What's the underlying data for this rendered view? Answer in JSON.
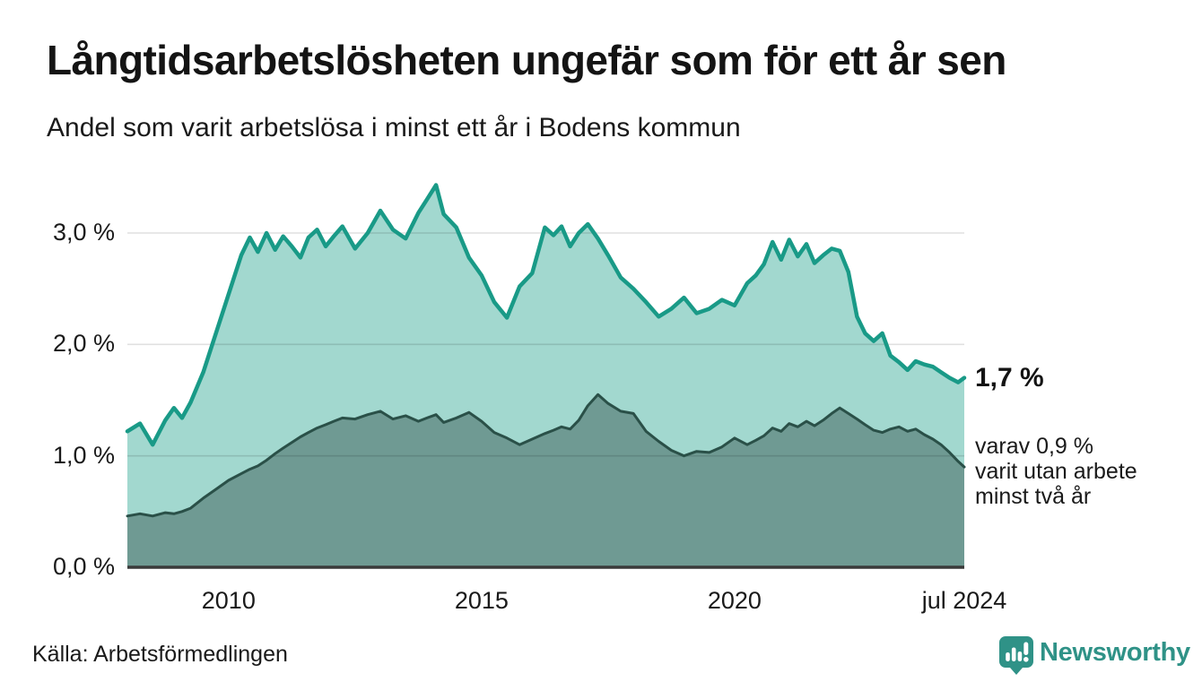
{
  "header": {
    "title": "Långtidsarbetslösheten ungefär som för ett år sen",
    "subtitle": "Andel som varit arbetslösa i minst ett år i Bodens kommun"
  },
  "chart_data": {
    "type": "area",
    "title": "Långtidsarbetslösheten ungefär som för ett år sen",
    "subtitle": "Andel som varit arbetslösa i minst ett år i Bodens kommun",
    "xlabel": "",
    "ylabel": "",
    "xlim": [
      2008.0,
      2024.54
    ],
    "ylim": [
      0,
      3.45
    ],
    "grid": true,
    "legend_position": "annotated-at-line-end",
    "x": [
      2008.0,
      2008.25,
      2008.5,
      2008.75,
      2008.92,
      2009.08,
      2009.25,
      2009.5,
      2009.75,
      2010.0,
      2010.25,
      2010.42,
      2010.58,
      2010.75,
      2010.92,
      2011.08,
      2011.25,
      2011.42,
      2011.58,
      2011.75,
      2011.92,
      2012.08,
      2012.25,
      2012.5,
      2012.75,
      2013.0,
      2013.25,
      2013.5,
      2013.75,
      2013.92,
      2014.1,
      2014.25,
      2014.5,
      2014.75,
      2015.0,
      2015.25,
      2015.5,
      2015.75,
      2016.0,
      2016.25,
      2016.42,
      2016.58,
      2016.75,
      2016.92,
      2017.1,
      2017.3,
      2017.5,
      2017.75,
      2018.0,
      2018.25,
      2018.5,
      2018.75,
      2019.0,
      2019.25,
      2019.5,
      2019.75,
      2020.0,
      2020.25,
      2020.42,
      2020.58,
      2020.75,
      2020.92,
      2021.08,
      2021.25,
      2021.42,
      2021.58,
      2021.75,
      2021.92,
      2022.08,
      2022.25,
      2022.42,
      2022.58,
      2022.75,
      2022.92,
      2023.08,
      2023.25,
      2023.42,
      2023.58,
      2023.75,
      2023.92,
      2024.08,
      2024.25,
      2024.42,
      2024.54
    ],
    "series": [
      {
        "name": "Andel arbetslösa minst ett år",
        "stroke": "#199a87",
        "fill": "#a2d8cf",
        "stroke_width": 4.5,
        "values": [
          1.22,
          1.29,
          1.1,
          1.32,
          1.43,
          1.34,
          1.48,
          1.75,
          2.1,
          2.45,
          2.8,
          2.96,
          2.83,
          3.0,
          2.85,
          2.97,
          2.88,
          2.78,
          2.96,
          3.03,
          2.88,
          2.97,
          3.06,
          2.86,
          3.0,
          3.2,
          3.03,
          2.95,
          3.18,
          3.3,
          3.43,
          3.17,
          3.05,
          2.78,
          2.62,
          2.38,
          2.24,
          2.52,
          2.64,
          3.05,
          2.98,
          3.06,
          2.88,
          3.0,
          3.08,
          2.95,
          2.8,
          2.6,
          2.5,
          2.38,
          2.25,
          2.32,
          2.42,
          2.28,
          2.32,
          2.4,
          2.35,
          2.55,
          2.62,
          2.72,
          2.92,
          2.76,
          2.94,
          2.79,
          2.9,
          2.73,
          2.8,
          2.86,
          2.84,
          2.65,
          2.25,
          2.1,
          2.03,
          2.1,
          1.9,
          1.84,
          1.77,
          1.85,
          1.82,
          1.8,
          1.75,
          1.7,
          1.66,
          1.7
        ]
      },
      {
        "name": "Andel utan arbete minst två år",
        "stroke": "#2a5048",
        "fill": "#6f9a93",
        "stroke_width": 3,
        "values": [
          0.46,
          0.48,
          0.46,
          0.49,
          0.48,
          0.5,
          0.53,
          0.62,
          0.7,
          0.78,
          0.84,
          0.88,
          0.91,
          0.96,
          1.02,
          1.07,
          1.12,
          1.17,
          1.21,
          1.25,
          1.28,
          1.31,
          1.34,
          1.33,
          1.37,
          1.4,
          1.33,
          1.36,
          1.31,
          1.34,
          1.37,
          1.3,
          1.34,
          1.39,
          1.31,
          1.21,
          1.16,
          1.1,
          1.15,
          1.2,
          1.23,
          1.26,
          1.24,
          1.32,
          1.45,
          1.55,
          1.47,
          1.4,
          1.38,
          1.22,
          1.13,
          1.05,
          1.0,
          1.04,
          1.03,
          1.08,
          1.16,
          1.1,
          1.14,
          1.18,
          1.25,
          1.22,
          1.29,
          1.26,
          1.31,
          1.27,
          1.32,
          1.38,
          1.43,
          1.38,
          1.33,
          1.28,
          1.23,
          1.21,
          1.24,
          1.26,
          1.22,
          1.24,
          1.19,
          1.15,
          1.1,
          1.03,
          0.95,
          0.9
        ]
      }
    ],
    "yticks": [
      {
        "v": 3.0,
        "label": "3,0 %"
      },
      {
        "v": 2.0,
        "label": "2,0 %"
      },
      {
        "v": 1.0,
        "label": "1,0 %"
      },
      {
        "v": 0.0,
        "label": "0,0 %"
      }
    ],
    "xticks": [
      {
        "t": 2010,
        "label": "2010"
      },
      {
        "t": 2015,
        "label": "2015"
      },
      {
        "t": 2020,
        "label": "2020"
      },
      {
        "t": 2024.54,
        "label": "jul 2024"
      }
    ],
    "latest_values": {
      "total_pct": 1.7,
      "two_years_pct": 0.9
    }
  },
  "annotations": {
    "latest_total": "1,7 %",
    "detail_line1": "varav 0,9 %",
    "detail_line2": "varit utan arbete",
    "detail_line3": "minst två år"
  },
  "footer": {
    "source": "Källa: Arbetsförmedlingen",
    "brand": "Newsworthy"
  },
  "colors": {
    "accent_teal": "#199a87",
    "light_fill": "#a2d8cf",
    "dark_fill": "#6f9a93",
    "dark_line": "#2a5048",
    "gridline": "rgba(0,0,0,0.12)",
    "axis_line": "#3a3a3a",
    "brand_teal": "#2f9287",
    "text": "#1a1a1a"
  }
}
